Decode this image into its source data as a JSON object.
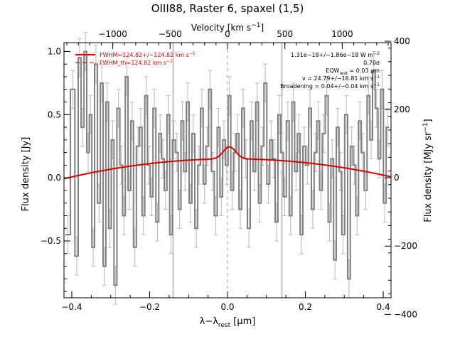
{
  "chart_data": {
    "type": "line",
    "title": "OIII88, Raster 6, spaxel (1,5)",
    "xlabel": "λ−λ",
    "xlabel_sub": "rest",
    "xlabel_unit": " [μm]",
    "ylabel": "Flux density [Jy]",
    "top_axis_label": "Velocity [km s",
    "top_axis_sup": "−1",
    "top_axis_close": "]",
    "right_axis_label": "Flux density [MJy sr",
    "right_axis_sup": "−1",
    "right_axis_close": "]",
    "xlim": [
      -0.42,
      0.42
    ],
    "ylim": [
      -0.95,
      1.07
    ],
    "x_ticks": [
      -0.4,
      -0.2,
      0.0,
      0.2,
      0.4
    ],
    "x_tick_labels": [
      "−0.4",
      "−0.2",
      "0.0",
      "0.2",
      "0.4"
    ],
    "y_ticks": [
      -0.5,
      0.0,
      0.5,
      1.0
    ],
    "y_tick_labels": [
      "−0.5",
      "0.0",
      "0.5",
      "1.0"
    ],
    "top_ticks": [
      -1000,
      -500,
      0,
      500,
      1000
    ],
    "top_tick_labels": [
      "−1000",
      "−500",
      "0",
      "500",
      "1000"
    ],
    "right_ticks": [
      -400,
      -200,
      0,
      200,
      400
    ],
    "right_tick_labels": [
      "−400",
      "−200",
      "0",
      "200",
      "400"
    ],
    "right_scale_per_jy": 370,
    "vertical_lines": [
      -0.14,
      0.14
    ],
    "rest_line": 0.0,
    "legend": [
      {
        "label": "FWHM=124.82+/−124.82 km s",
        "sup": "−1",
        "style": "solid",
        "color": "#d40000"
      },
      {
        "label": "FWHM_th=124.82 km s",
        "sup": "−1",
        "style": "dashed",
        "color": "#d40000"
      }
    ],
    "annotations": [
      {
        "text": "1.31e−18+/−1.86e−18 W m",
        "sup": "−2"
      },
      {
        "text": "0.70σ"
      },
      {
        "text": "EQW",
        "sub": "rest",
        "tail": " = 0.03 μm"
      },
      {
        "text": "v = 24.79+/−16.81 km s",
        "sup": "−1"
      },
      {
        "text": "Broadening = 0.04+/−0.04 km s",
        "sup": "−1"
      }
    ],
    "series": [
      {
        "role": "data",
        "color": "#808080",
        "x": [
          -0.41,
          -0.397,
          -0.387,
          -0.38,
          -0.372,
          -0.365,
          -0.358,
          -0.352,
          -0.345,
          -0.338,
          -0.33,
          -0.323,
          -0.316,
          -0.309,
          -0.302,
          -0.295,
          -0.288,
          -0.28,
          -0.273,
          -0.266,
          -0.259,
          -0.252,
          -0.245,
          -0.238,
          -0.23,
          -0.223,
          -0.216,
          -0.209,
          -0.202,
          -0.195,
          -0.188,
          -0.18,
          -0.173,
          -0.166,
          -0.159,
          -0.152,
          -0.145,
          -0.138,
          -0.13,
          -0.123,
          -0.116,
          -0.109,
          -0.102,
          -0.095,
          -0.088,
          -0.08,
          -0.073,
          -0.066,
          -0.059,
          -0.052,
          -0.045,
          -0.038,
          -0.03,
          -0.023,
          -0.016,
          -0.009,
          -0.002,
          0.005,
          0.012,
          0.019,
          0.026,
          0.033,
          0.04,
          0.047,
          0.055,
          0.062,
          0.069,
          0.076,
          0.083,
          0.09,
          0.097,
          0.105,
          0.112,
          0.119,
          0.126,
          0.133,
          0.14,
          0.147,
          0.155,
          0.162,
          0.169,
          0.176,
          0.183,
          0.19,
          0.197,
          0.205,
          0.212,
          0.219,
          0.226,
          0.233,
          0.24,
          0.247,
          0.255,
          0.262,
          0.269,
          0.276,
          0.283,
          0.29,
          0.297,
          0.305,
          0.312,
          0.319,
          0.326,
          0.333,
          0.34,
          0.347,
          0.355,
          0.362,
          0.369,
          0.376,
          0.383,
          0.39,
          0.397,
          0.404,
          0.411
        ],
        "y": [
          -0.45,
          0.7,
          -0.62,
          0.95,
          0.4,
          1.0,
          0.2,
          0.5,
          -0.55,
          0.9,
          -0.2,
          0.75,
          -0.7,
          0.6,
          -0.4,
          0.3,
          -0.85,
          0.55,
          0.1,
          -0.3,
          0.8,
          -0.1,
          0.45,
          -0.55,
          0.25,
          0.4,
          -0.3,
          0.65,
          0.1,
          -0.15,
          0.55,
          -0.35,
          0.35,
          0.15,
          -0.1,
          0.5,
          -0.45,
          0.3,
          0.2,
          -0.25,
          0.45,
          0.05,
          0.6,
          -0.2,
          0.35,
          -0.4,
          0.1,
          0.55,
          -0.05,
          0.25,
          0.7,
          0.05,
          -0.3,
          0.4,
          -0.15,
          0.3,
          0.1,
          0.65,
          -0.1,
          0.2,
          0.35,
          -0.25,
          0.55,
          0.15,
          -0.4,
          0.45,
          0.05,
          0.6,
          -0.2,
          0.25,
          0.75,
          -0.05,
          0.3,
          0.15,
          -0.35,
          0.5,
          0.2,
          -0.15,
          0.45,
          -0.3,
          0.6,
          0.05,
          0.35,
          -0.45,
          0.25,
          0.1,
          0.55,
          -0.25,
          0.2,
          0.45,
          -0.1,
          0.35,
          0.65,
          -0.35,
          0.15,
          -0.65,
          0.4,
          0.05,
          -0.45,
          0.5,
          -0.8,
          0.25,
          0.1,
          -0.3,
          0.45,
          0.2,
          -0.1,
          0.65,
          0.3,
          0.85,
          0.55,
          0.15,
          0.7,
          -0.2,
          0.4
        ],
        "yerr": 0.15
      },
      {
        "role": "fit",
        "color": "#d40000",
        "continuum": {
          "a": 0.15,
          "b": 0.018,
          "c": -0.85
        },
        "gaussian": {
          "amp": 0.095,
          "center": 0.005,
          "sigma": 0.016
        }
      }
    ],
    "grid": false,
    "legend_placement": "top-left"
  }
}
